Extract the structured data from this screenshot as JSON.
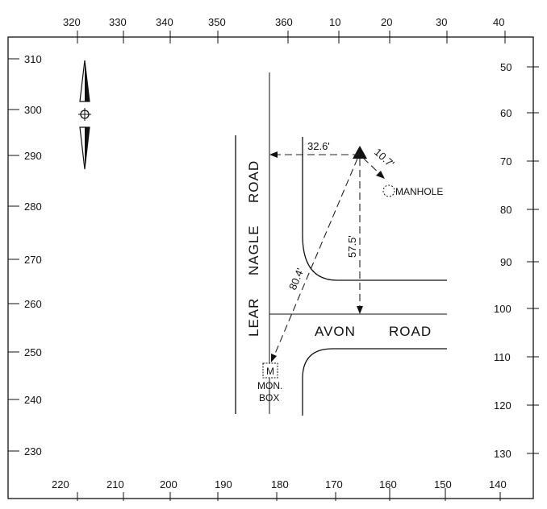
{
  "scale": {
    "top": [
      "320",
      "330",
      "340",
      "350",
      "360",
      "10",
      "20",
      "30",
      "40"
    ],
    "bottom": [
      "220",
      "210",
      "200",
      "190",
      "180",
      "170",
      "160",
      "150",
      "140"
    ],
    "left": [
      "310",
      "300",
      "290",
      "280",
      "270",
      "260",
      "250",
      "240",
      "230"
    ],
    "right": [
      "50",
      "60",
      "70",
      "80",
      "90",
      "100",
      "110",
      "120",
      "130"
    ]
  },
  "streets": {
    "lear": "LEAR",
    "nagle": "NAGLE",
    "road_vertical": "ROAD",
    "avon": "AVON",
    "road_horizontal": "ROAD"
  },
  "dimensions": {
    "to_curb": "32.6'",
    "to_manhole": "10.7'",
    "to_avon": "57.5'",
    "to_monbox": "80.4'"
  },
  "features": {
    "manhole": "MANHOLE",
    "monbox_symbol": "M",
    "monbox_line1": "MON.",
    "monbox_line2": "BOX"
  }
}
